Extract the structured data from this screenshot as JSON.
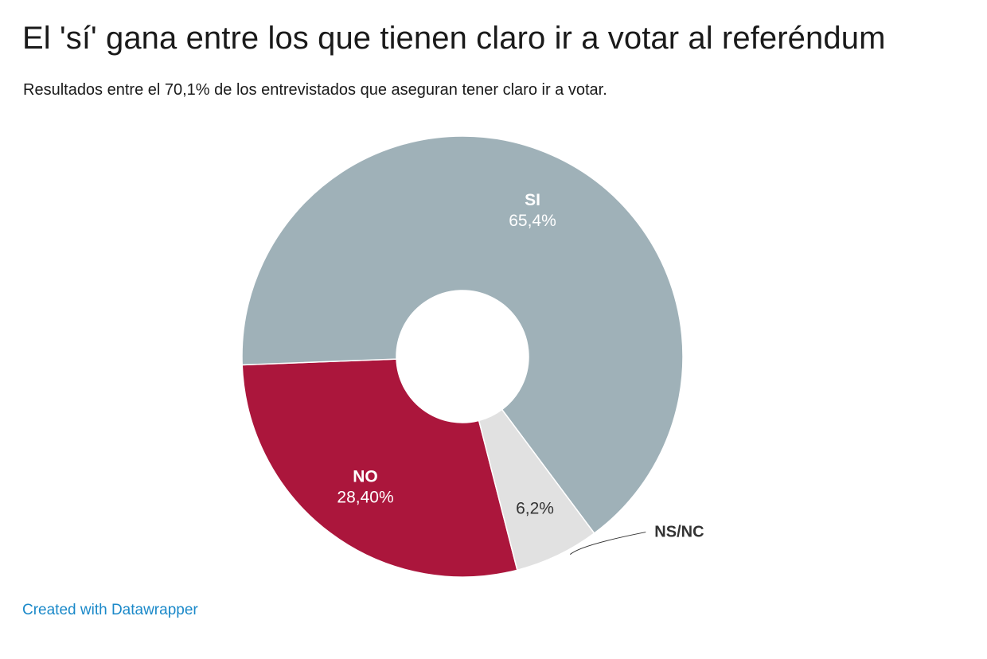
{
  "title": "El 'sí' gana entre los que tienen claro ir a votar al referéndum",
  "subtitle": "Resultados entre el 70,1% de los entrevistados que aseguran tener claro ir a votar.",
  "credit": "Created with Datawrapper",
  "chart_data": {
    "type": "pie",
    "variant": "donut",
    "title": "El 'sí' gana entre los que tienen claro ir a votar al referéndum",
    "subtitle": "Resultados entre el 70,1% de los entrevistados que aseguran tener claro ir a votar.",
    "slices": [
      {
        "name": "SI",
        "value": 65.4,
        "value_label": "65,4%",
        "color": "#9fb1b8",
        "label_style": "light"
      },
      {
        "name": "NO",
        "value": 28.4,
        "value_label": "28,40%",
        "color": "#ab163c",
        "label_style": "light"
      },
      {
        "name": "NS/NC",
        "value": 6.2,
        "value_label": "6,2%",
        "color": "#e1e1e1",
        "label_style": "dark",
        "name_outside": true
      }
    ]
  }
}
